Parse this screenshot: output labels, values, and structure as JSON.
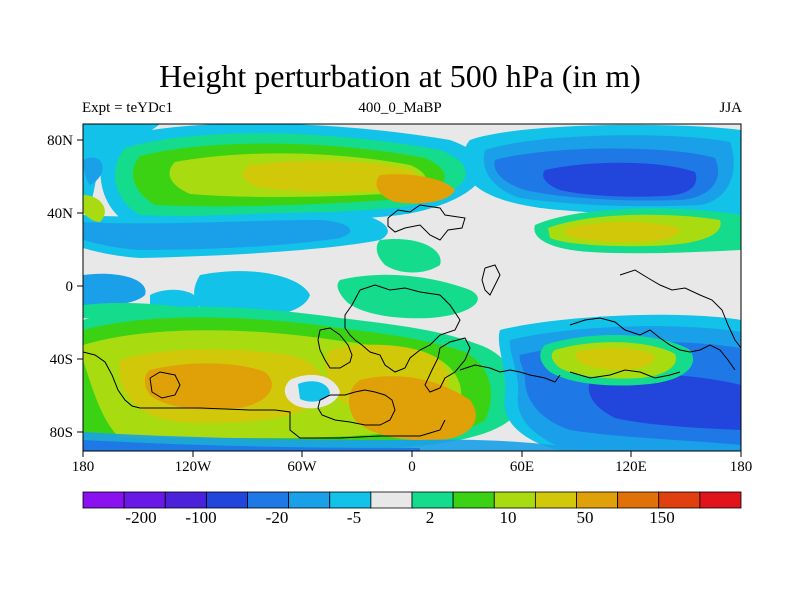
{
  "header": {
    "title": "Height perturbation at 500 hPa (in m)",
    "left": "Expt = teYDc1",
    "center": "400_0_MaBP",
    "right": "JJA"
  },
  "axes": {
    "x_ticks": [
      "180",
      "120W",
      "60W",
      "0",
      "60E",
      "120E",
      "180"
    ],
    "y_ticks": [
      "80N",
      "40N",
      "0",
      "40S",
      "80S"
    ]
  },
  "colorbar": {
    "colors": [
      "#8a12f0",
      "#6a18e6",
      "#4a22dc",
      "#2246dc",
      "#1e78e6",
      "#1aa0e8",
      "#12c2e8",
      "#e8e8e8",
      "#14dc8c",
      "#3cd214",
      "#a8dc10",
      "#d2c80a",
      "#e0a008",
      "#e07008",
      "#e04010",
      "#e0141c"
    ],
    "labels": [
      "-200",
      "-100",
      "-20",
      "-5",
      "2",
      "10",
      "50",
      "150"
    ]
  },
  "map": {
    "background_color": "#e8e8e8"
  }
}
